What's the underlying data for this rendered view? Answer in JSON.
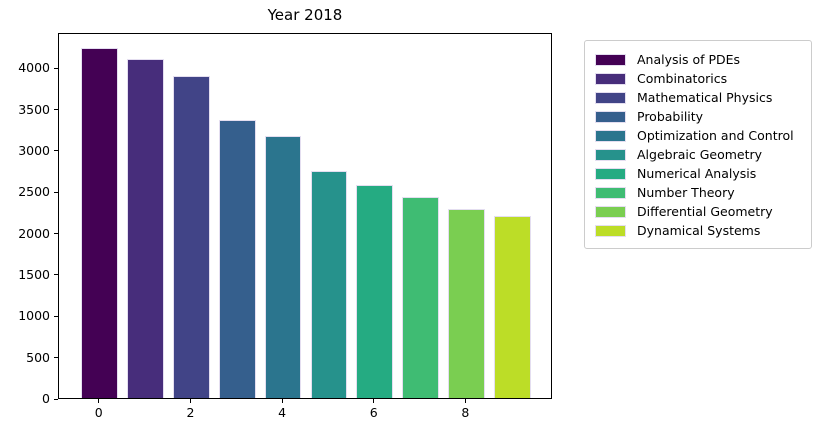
{
  "chart_data": {
    "type": "bar",
    "title": "Year 2018",
    "categories": [
      "Analysis of PDEs",
      "Combinatorics",
      "Mathematical Physics",
      "Probability",
      "Optimization and Control",
      "Algebraic Geometry",
      "Numerical Analysis",
      "Number Theory",
      "Differential Geometry",
      "Dynamical Systems"
    ],
    "x": [
      0,
      1,
      2,
      3,
      4,
      5,
      6,
      7,
      8,
      9
    ],
    "values": [
      4235,
      4095,
      3890,
      3360,
      3170,
      2750,
      2570,
      2435,
      2285,
      2195
    ],
    "bar_colors": [
      "#440154",
      "#472d7b",
      "#414487",
      "#355f8d",
      "#2b758e",
      "#26928c",
      "#25ab82",
      "#3fbc73",
      "#7ace51",
      "#bcdd27"
    ],
    "xlabel": "",
    "ylabel": "",
    "xticks": [
      0,
      2,
      4,
      6,
      8
    ],
    "yticks": [
      0,
      500,
      1000,
      1500,
      2000,
      2500,
      3000,
      3500,
      4000
    ],
    "xlim": [
      -0.89,
      9.89
    ],
    "ylim": [
      0,
      4425
    ],
    "bar_width": 0.8,
    "grid": false,
    "legend": {
      "position": "outside-upper-right",
      "entries": [
        "Analysis of PDEs",
        "Combinatorics",
        "Mathematical Physics",
        "Probability",
        "Optimization and Control",
        "Algebraic Geometry",
        "Numerical Analysis",
        "Number Theory",
        "Differential Geometry",
        "Dynamical Systems"
      ]
    }
  }
}
